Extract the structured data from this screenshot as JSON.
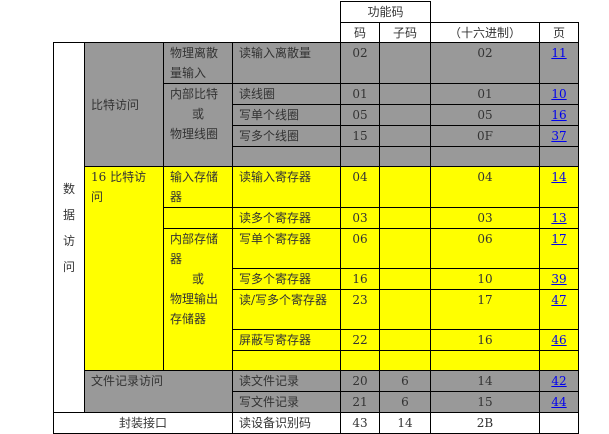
{
  "header": {
    "function_code": "功能码",
    "code": "码",
    "sub_code": "子码",
    "hex": "（十六进制）",
    "page": "页"
  },
  "colors": {
    "bit_section": "#999999",
    "register_section": "#ffff00",
    "link": "#0000ee"
  },
  "data_access": "数据访问",
  "groups": {
    "bit_access": "比特访问",
    "physical_discrete_inputs": "物理离散量输入",
    "internal_bits_or_coils": "内部比特或物理线圈",
    "register_access": "16 比特访问",
    "input_registers": "输入存储器",
    "internal_or_holding_registers": "内部存储器或物理输出存储器",
    "file_record_access": "文件记录访问",
    "encapsulated_interface": "封装接口"
  },
  "rows": [
    {
      "name": "读输入离散量",
      "code": "02",
      "sub": "",
      "hex": "02",
      "page": "11"
    },
    {
      "name": "读线圈",
      "code": "01",
      "sub": "",
      "hex": "01",
      "page": "10"
    },
    {
      "name": "写单个线圈",
      "code": "05",
      "sub": "",
      "hex": "05",
      "page": "16"
    },
    {
      "name": "写多个线圈",
      "code": "15",
      "sub": "",
      "hex": "0F",
      "page": "37"
    },
    {
      "name": "",
      "code": "",
      "sub": "",
      "hex": "",
      "page": ""
    },
    {
      "name": "读输入寄存器",
      "code": "04",
      "sub": "",
      "hex": "04",
      "page": "14"
    },
    {
      "name": "读多个寄存器",
      "code": "03",
      "sub": "",
      "hex": "03",
      "page": "13"
    },
    {
      "name": "写单个寄存器",
      "code": "06",
      "sub": "",
      "hex": "06",
      "page": "17"
    },
    {
      "name": "写多个寄存器",
      "code": "16",
      "sub": "",
      "hex": "10",
      "page": "39"
    },
    {
      "name": "读/写多个寄存器",
      "code": "23",
      "sub": "",
      "hex": "17",
      "page": "47"
    },
    {
      "name": "屏蔽写寄存器",
      "code": "22",
      "sub": "",
      "hex": "16",
      "page": "46"
    },
    {
      "name": "",
      "code": "",
      "sub": "",
      "hex": "",
      "page": ""
    },
    {
      "name": "读文件记录",
      "code": "20",
      "sub": "6",
      "hex": "14",
      "page": "42"
    },
    {
      "name": "写文件记录",
      "code": "21",
      "sub": "6",
      "hex": "15",
      "page": "44"
    },
    {
      "name": "读设备识别码",
      "code": "43",
      "sub": "14",
      "hex": "2B",
      "page": ""
    }
  ]
}
